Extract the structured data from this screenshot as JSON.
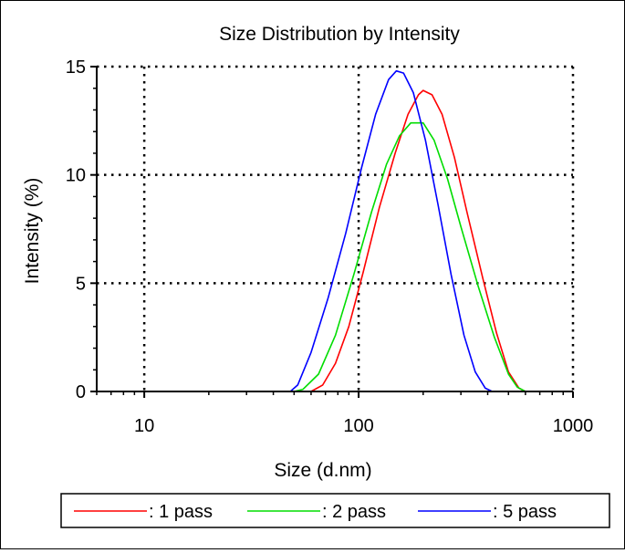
{
  "chart_data": {
    "type": "line",
    "title": "Size Distribution by Intensity",
    "xlabel": "Size (d.nm)",
    "ylabel": "Intensity (%)",
    "x_scale": "log",
    "xlim": [
      6,
      1000
    ],
    "ylim": [
      0,
      15
    ],
    "x_ticks": [
      {
        "value": 10,
        "label": "10"
      },
      {
        "value": 100,
        "label": "100"
      },
      {
        "value": 1000,
        "label": "1000"
      }
    ],
    "y_ticks": [
      {
        "value": 0,
        "label": "0"
      },
      {
        "value": 5,
        "label": "5"
      },
      {
        "value": 10,
        "label": "10"
      },
      {
        "value": 15,
        "label": "15"
      }
    ],
    "grid": "dotted",
    "legend_placement": "bottom",
    "series": [
      {
        "name": ": 1 pass",
        "color": "#ff0000",
        "points": [
          [
            6,
            0
          ],
          [
            50,
            0
          ],
          [
            60,
            0
          ],
          [
            68,
            0.3
          ],
          [
            78,
            1.3
          ],
          [
            90,
            3.0
          ],
          [
            105,
            5.5
          ],
          [
            125,
            8.5
          ],
          [
            148,
            11.0
          ],
          [
            170,
            12.8
          ],
          [
            190,
            13.7
          ],
          [
            200,
            13.9
          ],
          [
            220,
            13.7
          ],
          [
            245,
            12.8
          ],
          [
            280,
            10.8
          ],
          [
            320,
            8.3
          ],
          [
            380,
            5.2
          ],
          [
            440,
            2.7
          ],
          [
            500,
            0.9
          ],
          [
            560,
            0.15
          ],
          [
            600,
            0
          ],
          [
            1000,
            0
          ]
        ]
      },
      {
        "name": ": 2 pass",
        "color": "#00dd00",
        "points": [
          [
            6,
            0
          ],
          [
            50,
            0
          ],
          [
            55,
            0.1
          ],
          [
            65,
            0.8
          ],
          [
            78,
            2.6
          ],
          [
            95,
            5.4
          ],
          [
            115,
            8.3
          ],
          [
            135,
            10.5
          ],
          [
            155,
            11.8
          ],
          [
            175,
            12.4
          ],
          [
            200,
            12.4
          ],
          [
            225,
            11.6
          ],
          [
            260,
            9.8
          ],
          [
            300,
            7.6
          ],
          [
            360,
            4.9
          ],
          [
            430,
            2.5
          ],
          [
            500,
            0.8
          ],
          [
            550,
            0.2
          ],
          [
            600,
            0
          ],
          [
            1000,
            0
          ]
        ]
      },
      {
        "name": ": 5 pass",
        "color": "#0000ff",
        "points": [
          [
            6,
            0
          ],
          [
            48,
            0
          ],
          [
            52,
            0.3
          ],
          [
            60,
            1.8
          ],
          [
            72,
            4.3
          ],
          [
            87,
            7.3
          ],
          [
            103,
            10.3
          ],
          [
            120,
            12.8
          ],
          [
            138,
            14.4
          ],
          [
            150,
            14.8
          ],
          [
            162,
            14.7
          ],
          [
            180,
            13.8
          ],
          [
            205,
            11.6
          ],
          [
            235,
            8.6
          ],
          [
            270,
            5.4
          ],
          [
            310,
            2.6
          ],
          [
            350,
            0.9
          ],
          [
            390,
            0.15
          ],
          [
            420,
            0
          ],
          [
            1000,
            0
          ]
        ]
      }
    ]
  }
}
